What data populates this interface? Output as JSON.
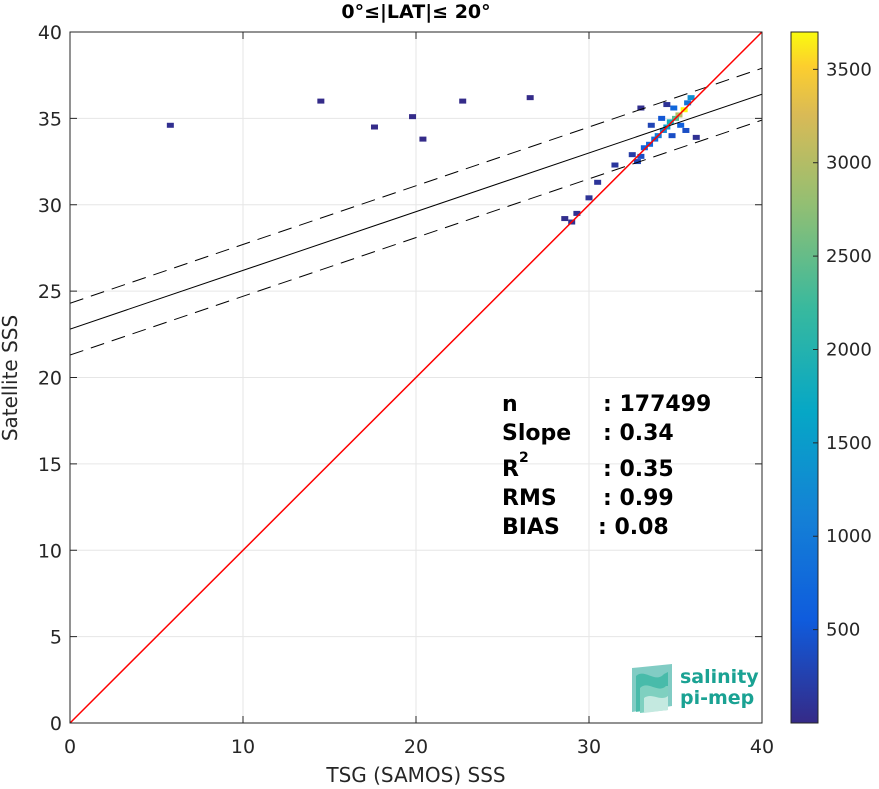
{
  "chart_data": {
    "type": "heatmap",
    "title": "0°≤|LAT|≤ 20°",
    "xlabel": "TSG (SAMOS) SSS",
    "ylabel": "Satellite SSS",
    "xlim": [
      0,
      40
    ],
    "ylim": [
      0,
      40
    ],
    "xticks": [
      0,
      10,
      20,
      30,
      40
    ],
    "yticks": [
      0,
      5,
      10,
      15,
      20,
      25,
      30,
      35,
      40
    ],
    "grid": true,
    "colorbar": {
      "range": [
        0,
        3700
      ],
      "ticks": [
        500,
        1000,
        1500,
        2000,
        2500,
        3000,
        3500
      ],
      "colormap": "parula"
    },
    "identity_line": {
      "slope": 1,
      "intercept": 0,
      "color": "#ff0000"
    },
    "regression_line": {
      "slope": 0.34,
      "intercept": 22.8,
      "color": "#000000"
    },
    "confidence_lines": [
      {
        "slope": 0.34,
        "intercept": 24.3,
        "style": "dashed"
      },
      {
        "slope": 0.34,
        "intercept": 21.3,
        "style": "dashed"
      }
    ],
    "density_cells": [
      {
        "x": 35.5,
        "y": 35.5,
        "v": 3700
      },
      {
        "x": 35.2,
        "y": 35.2,
        "v": 3000
      },
      {
        "x": 35.0,
        "y": 35.0,
        "v": 2400
      },
      {
        "x": 34.7,
        "y": 34.8,
        "v": 1800
      },
      {
        "x": 34.5,
        "y": 34.5,
        "v": 1500
      },
      {
        "x": 34.3,
        "y": 34.3,
        "v": 1200
      },
      {
        "x": 34.0,
        "y": 34.0,
        "v": 1000
      },
      {
        "x": 33.8,
        "y": 33.8,
        "v": 800
      },
      {
        "x": 33.5,
        "y": 33.5,
        "v": 700
      },
      {
        "x": 33.2,
        "y": 33.3,
        "v": 600
      },
      {
        "x": 35.7,
        "y": 35.9,
        "v": 900
      },
      {
        "x": 35.9,
        "y": 36.2,
        "v": 1300
      },
      {
        "x": 34.9,
        "y": 35.6,
        "v": 700
      },
      {
        "x": 34.2,
        "y": 35.0,
        "v": 500
      },
      {
        "x": 35.3,
        "y": 34.6,
        "v": 600
      },
      {
        "x": 35.6,
        "y": 34.3,
        "v": 400
      },
      {
        "x": 34.8,
        "y": 34.0,
        "v": 400
      },
      {
        "x": 33.0,
        "y": 32.8,
        "v": 400
      },
      {
        "x": 32.8,
        "y": 32.5,
        "v": 300
      },
      {
        "x": 33.6,
        "y": 34.6,
        "v": 300
      },
      {
        "x": 32.5,
        "y": 32.9,
        "v": 200
      },
      {
        "x": 31.5,
        "y": 32.3,
        "v": 150
      },
      {
        "x": 30.5,
        "y": 31.3,
        "v": 120
      },
      {
        "x": 30.0,
        "y": 30.4,
        "v": 100
      },
      {
        "x": 29.3,
        "y": 29.5,
        "v": 80
      },
      {
        "x": 29.0,
        "y": 29.0,
        "v": 60
      },
      {
        "x": 28.6,
        "y": 29.2,
        "v": 40
      },
      {
        "x": 34.5,
        "y": 35.8,
        "v": 100
      },
      {
        "x": 33.0,
        "y": 35.6,
        "v": 50
      },
      {
        "x": 36.2,
        "y": 33.9,
        "v": 80
      },
      {
        "x": 5.8,
        "y": 34.6,
        "v": 60
      },
      {
        "x": 14.5,
        "y": 36.0,
        "v": 10
      },
      {
        "x": 17.6,
        "y": 34.5,
        "v": 10
      },
      {
        "x": 19.8,
        "y": 35.1,
        "v": 10
      },
      {
        "x": 22.7,
        "y": 36.0,
        "v": 10
      },
      {
        "x": 26.6,
        "y": 36.2,
        "v": 10
      },
      {
        "x": 20.4,
        "y": 33.8,
        "v": 10
      }
    ]
  },
  "stats": {
    "n_label": "n",
    "n_value": ": 177499",
    "slope_label": "Slope",
    "slope_value": ": 0.34",
    "r2_label": "R",
    "r2_sup": "2",
    "r2_value": ": 0.35",
    "rms_label": "RMS",
    "rms_value": ": 0.99",
    "bias_label": "BIAS",
    "bias_value": ": 0.08"
  },
  "logo": {
    "line1": "salinity",
    "line2": "pi-mep"
  }
}
